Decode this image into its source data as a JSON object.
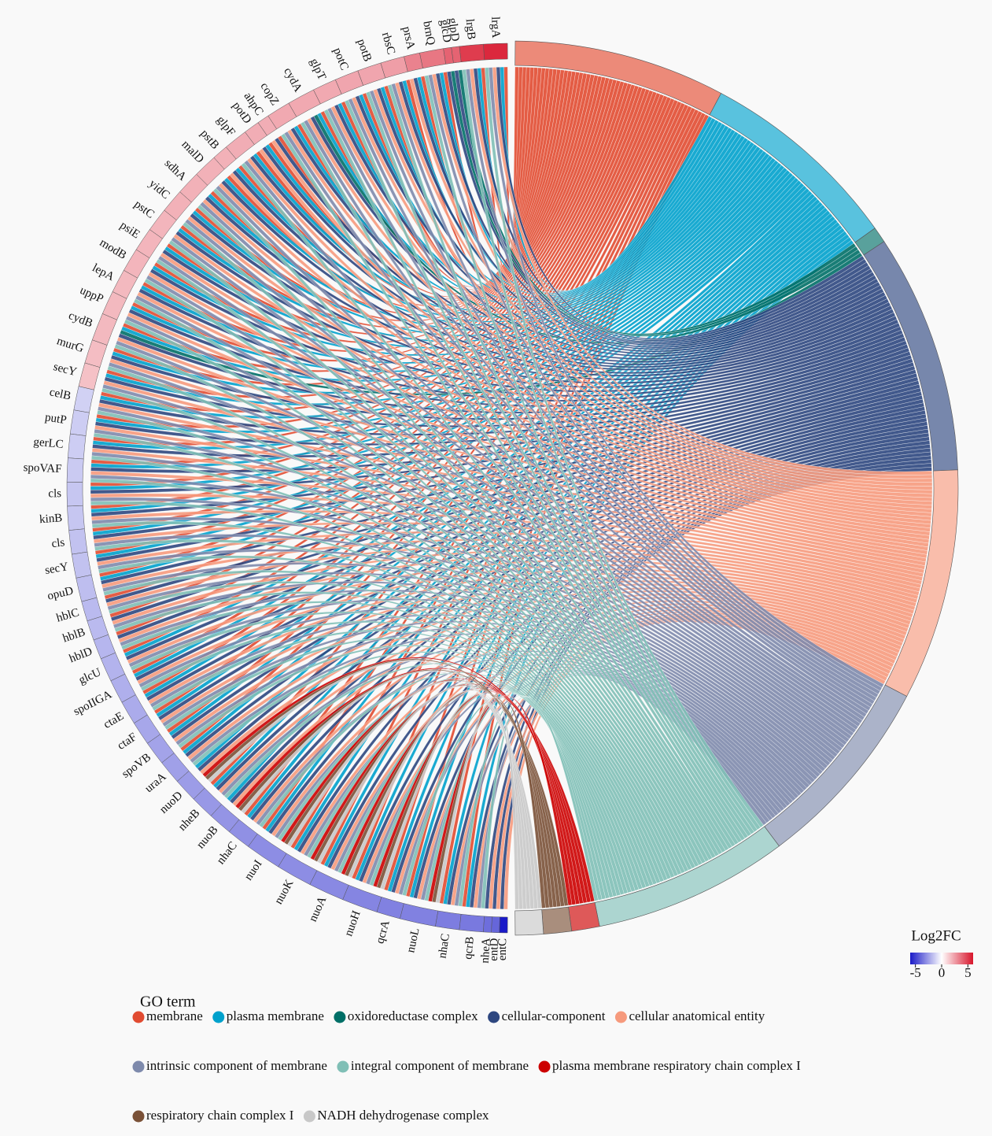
{
  "chart_data": {
    "type": "chord",
    "legend_title": "GO term",
    "colorbar_title": "Log2FC",
    "colorbar_lim": [
      -6,
      6
    ],
    "colorbar_ticks": [
      -5,
      0,
      5
    ],
    "colorbar_colors": [
      "#1a1ac8",
      "#ffffff",
      "#d8152b"
    ],
    "terms": [
      {
        "name": "membrane",
        "color": "#e14b31"
      },
      {
        "name": "plasma membrane",
        "color": "#00a1cc"
      },
      {
        "name": "oxidoreductase complex",
        "color": "#006f67"
      },
      {
        "name": "cellular-component",
        "color": "#2e4780"
      },
      {
        "name": "cellular anatomical entity",
        "color": "#f69a7d"
      },
      {
        "name": "intrinsic component of membrane",
        "color": "#7e8aac"
      },
      {
        "name": "integral component of membrane",
        "color": "#80bfb6"
      },
      {
        "name": "plasma membrane respiratory chain complex I",
        "color": "#cc0000"
      },
      {
        "name": "respiratory chain complex I",
        "color": "#7a5137"
      },
      {
        "name": "NADH dehydrogenase complex",
        "color": "#c8c8c8"
      }
    ],
    "genes": [
      {
        "name": "lrgA",
        "log2fc": 5.5,
        "terms": [
          0,
          1,
          3,
          4,
          5,
          6
        ]
      },
      {
        "name": "lrgB",
        "log2fc": 5,
        "terms": [
          0,
          1,
          3,
          4,
          5,
          6
        ]
      },
      {
        "name": "glpD",
        "log2fc": 4,
        "terms": [
          2,
          3
        ]
      },
      {
        "name": "glcD",
        "log2fc": 4,
        "terms": [
          2,
          3
        ]
      },
      {
        "name": "brnQ",
        "log2fc": 3.5,
        "terms": [
          0,
          1,
          3,
          4,
          5,
          6
        ]
      },
      {
        "name": "prsA",
        "log2fc": 3.2,
        "terms": [
          0,
          1,
          3,
          4
        ]
      },
      {
        "name": "rbsC",
        "log2fc": 2.5,
        "terms": [
          0,
          1,
          3,
          4,
          5,
          6
        ]
      },
      {
        "name": "potB",
        "log2fc": 2.3,
        "terms": [
          0,
          1,
          3,
          4,
          5,
          6
        ]
      },
      {
        "name": "potC",
        "log2fc": 2.3,
        "terms": [
          0,
          1,
          3,
          4,
          5,
          6
        ]
      },
      {
        "name": "glpT",
        "log2fc": 2.2,
        "terms": [
          0,
          1,
          3,
          4,
          5,
          6
        ]
      },
      {
        "name": "cydA",
        "log2fc": 2.2,
        "terms": [
          0,
          1,
          2,
          3,
          4,
          5,
          6
        ]
      },
      {
        "name": "copZ",
        "log2fc": 2.2,
        "terms": [
          0,
          1,
          3,
          4,
          5,
          6
        ]
      },
      {
        "name": "ahpC",
        "log2fc": 2.1,
        "terms": [
          0,
          3,
          4
        ]
      },
      {
        "name": "potD",
        "log2fc": 2.1,
        "terms": [
          0,
          1,
          3,
          4
        ]
      },
      {
        "name": "glpF",
        "log2fc": 2.1,
        "terms": [
          0,
          1,
          3,
          4,
          5,
          6
        ]
      },
      {
        "name": "pstB",
        "log2fc": 2,
        "terms": [
          0,
          1,
          3,
          4
        ]
      },
      {
        "name": "malD",
        "log2fc": 2,
        "terms": [
          0,
          1,
          3,
          4,
          5,
          6
        ]
      },
      {
        "name": "sdhA",
        "log2fc": 2,
        "terms": [
          0,
          1,
          3,
          4,
          5,
          6
        ]
      },
      {
        "name": "yidC",
        "log2fc": 2,
        "terms": [
          0,
          1,
          3,
          4,
          5,
          6
        ]
      },
      {
        "name": "pstC",
        "log2fc": 1.9,
        "terms": [
          0,
          1,
          3,
          4,
          5,
          6
        ]
      },
      {
        "name": "psiE",
        "log2fc": 1.9,
        "terms": [
          0,
          1,
          3,
          4,
          5,
          6
        ]
      },
      {
        "name": "modB",
        "log2fc": 1.9,
        "terms": [
          0,
          1,
          3,
          4,
          5,
          6
        ]
      },
      {
        "name": "lepA",
        "log2fc": 1.8,
        "terms": [
          0,
          1,
          3,
          4,
          5,
          6
        ]
      },
      {
        "name": "uppP",
        "log2fc": 1.8,
        "terms": [
          0,
          1,
          3,
          4,
          5,
          6
        ]
      },
      {
        "name": "cydB",
        "log2fc": 1.8,
        "terms": [
          0,
          1,
          2,
          3,
          4,
          5,
          6
        ]
      },
      {
        "name": "murG",
        "log2fc": 1.7,
        "terms": [
          0,
          1,
          3,
          4,
          5,
          6
        ]
      },
      {
        "name": "secY",
        "log2fc": 1.6,
        "terms": [
          0,
          1,
          3,
          4,
          5,
          6
        ]
      },
      {
        "name": "celB",
        "log2fc": -1.2,
        "terms": [
          0,
          1,
          3,
          4,
          5,
          6
        ]
      },
      {
        "name": "putP",
        "log2fc": -1.3,
        "terms": [
          0,
          1,
          3,
          4,
          5,
          6
        ]
      },
      {
        "name": "gerLC",
        "log2fc": -1.3,
        "terms": [
          0,
          1,
          3,
          4,
          5,
          6
        ]
      },
      {
        "name": "spoVAF",
        "log2fc": -1.4,
        "terms": [
          0,
          1,
          3,
          4,
          5,
          6
        ]
      },
      {
        "name": "cls",
        "log2fc": -1.5,
        "terms": [
          0,
          1,
          3,
          4,
          5,
          6
        ]
      },
      {
        "name": "kinB",
        "log2fc": -1.5,
        "terms": [
          0,
          1,
          3,
          4,
          5,
          6
        ]
      },
      {
        "name": "cls",
        "log2fc": -1.6,
        "terms": [
          0,
          1,
          3,
          4,
          5,
          6
        ]
      },
      {
        "name": "secY",
        "log2fc": -1.6,
        "terms": [
          0,
          1,
          3,
          4,
          5,
          6
        ]
      },
      {
        "name": "opuD",
        "log2fc": -1.7,
        "terms": [
          0,
          1,
          3,
          4,
          5,
          6
        ]
      },
      {
        "name": "hblC",
        "log2fc": -1.8,
        "terms": [
          0,
          3,
          4,
          5,
          6
        ]
      },
      {
        "name": "hblB",
        "log2fc": -1.8,
        "terms": [
          0,
          3,
          4,
          5,
          6
        ]
      },
      {
        "name": "hblD",
        "log2fc": -1.9,
        "terms": [
          0,
          3,
          4,
          5,
          6
        ]
      },
      {
        "name": "glcU",
        "log2fc": -2,
        "terms": [
          0,
          1,
          3,
          4,
          5,
          6
        ]
      },
      {
        "name": "spoIIGA",
        "log2fc": -2.1,
        "terms": [
          0,
          1,
          3,
          4,
          5,
          6
        ]
      },
      {
        "name": "ctaE",
        "log2fc": -2.2,
        "terms": [
          0,
          1,
          3,
          4,
          5,
          6
        ]
      },
      {
        "name": "ctaF",
        "log2fc": -2.3,
        "terms": [
          0,
          1,
          3,
          4,
          5,
          6
        ]
      },
      {
        "name": "spoVB",
        "log2fc": -2.4,
        "terms": [
          0,
          1,
          3,
          4,
          5,
          6
        ]
      },
      {
        "name": "uraA",
        "log2fc": -2.5,
        "terms": [
          0,
          1,
          3,
          4,
          5,
          6
        ]
      },
      {
        "name": "nuoD",
        "log2fc": -2.6,
        "terms": [
          1,
          3,
          4,
          7,
          8,
          9
        ]
      },
      {
        "name": "nheB",
        "log2fc": -2.7,
        "terms": [
          0,
          1,
          3,
          4,
          5,
          6
        ]
      },
      {
        "name": "nuoB",
        "log2fc": -2.8,
        "terms": [
          1,
          3,
          4,
          7,
          8,
          9
        ]
      },
      {
        "name": "nhaC",
        "log2fc": -2.9,
        "terms": [
          0,
          1,
          3,
          4,
          5,
          6
        ]
      },
      {
        "name": "nuoI",
        "log2fc": -3,
        "terms": [
          0,
          1,
          3,
          4,
          5,
          6,
          7,
          8,
          9
        ]
      },
      {
        "name": "nuoK",
        "log2fc": -3,
        "terms": [
          0,
          1,
          3,
          4,
          5,
          6,
          7,
          8,
          9
        ]
      },
      {
        "name": "nuoA",
        "log2fc": -3.1,
        "terms": [
          0,
          1,
          3,
          4,
          5,
          6,
          7,
          8,
          9
        ]
      },
      {
        "name": "nuoH",
        "log2fc": -3.2,
        "terms": [
          0,
          1,
          3,
          4,
          5,
          6,
          7,
          8,
          9
        ]
      },
      {
        "name": "qcrA",
        "log2fc": -3.3,
        "terms": [
          0,
          1,
          3,
          4,
          5,
          6
        ]
      },
      {
        "name": "nuoL",
        "log2fc": -3.3,
        "terms": [
          0,
          1,
          3,
          4,
          5,
          6,
          7,
          8,
          9
        ]
      },
      {
        "name": "nhaC",
        "log2fc": -3.4,
        "terms": [
          0,
          1,
          3,
          4,
          5,
          6
        ]
      },
      {
        "name": "qcrB",
        "log2fc": -3.5,
        "terms": [
          0,
          1,
          3,
          4,
          5,
          6
        ]
      },
      {
        "name": "nheA",
        "log2fc": -3.8,
        "terms": [
          3,
          4
        ]
      },
      {
        "name": "entD",
        "log2fc": -4,
        "terms": [
          3,
          4
        ]
      },
      {
        "name": "entC",
        "log2fc": -6,
        "terms": [
          3,
          4
        ]
      }
    ]
  }
}
